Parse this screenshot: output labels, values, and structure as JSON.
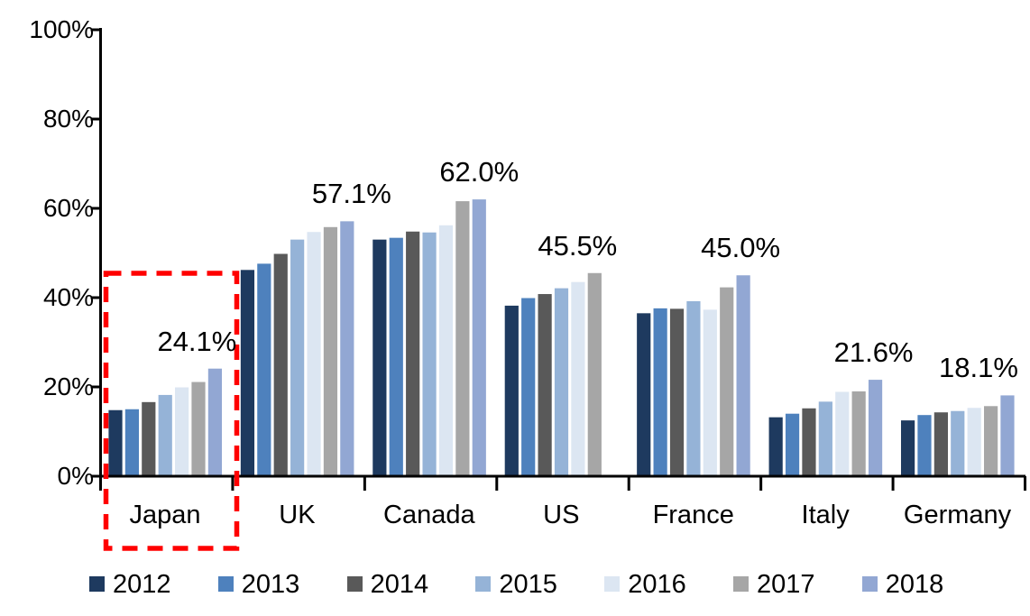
{
  "chart_data": {
    "type": "bar",
    "title": "",
    "unit": "%",
    "categories": [
      "Japan",
      "UK",
      "Canada",
      "US",
      "France",
      "Italy",
      "Germany"
    ],
    "series": [
      {
        "name": "2012",
        "color": "#1E3A5F",
        "values": [
          14.8,
          46.2,
          53.0,
          38.2,
          36.5,
          13.2,
          12.5
        ]
      },
      {
        "name": "2013",
        "color": "#4E81BD",
        "values": [
          15.0,
          47.6,
          53.4,
          39.9,
          37.6,
          14.0,
          13.7
        ]
      },
      {
        "name": "2014",
        "color": "#595959",
        "values": [
          16.6,
          49.8,
          54.8,
          40.8,
          37.5,
          15.2,
          14.3
        ]
      },
      {
        "name": "2015",
        "color": "#95B3D7",
        "values": [
          18.2,
          53.0,
          54.6,
          42.1,
          39.2,
          16.7,
          14.6
        ]
      },
      {
        "name": "2016",
        "color": "#DCE6F2",
        "values": [
          19.9,
          54.7,
          56.2,
          43.5,
          37.3,
          18.9,
          15.3
        ]
      },
      {
        "name": "2017",
        "color": "#A6A6A6",
        "values": [
          21.1,
          55.8,
          61.6,
          45.5,
          42.3,
          19.0,
          15.7
        ]
      },
      {
        "name": "2018",
        "color": "#92A7D3",
        "values": [
          24.1,
          57.1,
          62.0,
          null,
          45.0,
          21.6,
          18.1
        ]
      }
    ],
    "annotations": [
      {
        "category": "Japan",
        "text": "24.1%"
      },
      {
        "category": "UK",
        "text": "57.1%"
      },
      {
        "category": "Canada",
        "text": "62.0%"
      },
      {
        "category": "US",
        "text": "45.5%"
      },
      {
        "category": "France",
        "text": "45.0%"
      },
      {
        "category": "Italy",
        "text": "21.6%"
      },
      {
        "category": "Germany",
        "text": "18.1%"
      }
    ],
    "y_axis": {
      "min": 0,
      "max": 100,
      "ticks": [
        "0%",
        "20%",
        "40%",
        "60%",
        "80%",
        "100%"
      ]
    },
    "legend_position": "bottom",
    "grid": false,
    "highlight": {
      "category": "Japan",
      "style": "red-dashed-box",
      "color": "#FF0000"
    }
  }
}
